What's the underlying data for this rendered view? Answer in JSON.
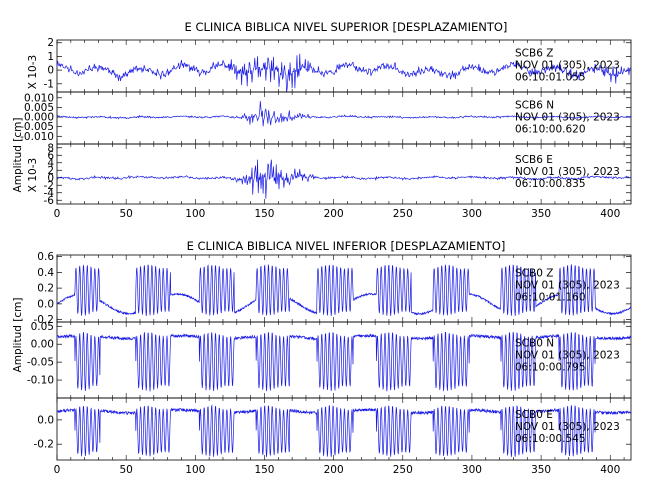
{
  "chart_data": [
    {
      "type": "line",
      "title": "E CLINICA BIBLICA NIVEL SUPERIOR [DESPLAZAMIENTO]",
      "ylabel": "Amplitud [cm]",
      "xlim": [
        0,
        415
      ],
      "xticks": [
        "0",
        "50",
        "100",
        "150",
        "200",
        "250",
        "300",
        "350",
        "400"
      ],
      "panels": [
        {
          "multiplier": "X 10-3",
          "ylim": [
            -1.6,
            2.2
          ],
          "yticks": [
            "2",
            "1",
            "0",
            "-1"
          ],
          "yticks_v": [
            2,
            1,
            0,
            -1
          ],
          "label_lines": [
            "SCB6   Z",
            "NOV 01 (305), 2023",
            "06:10:01.055"
          ],
          "signal": {
            "noise": 0.32,
            "slow": 0.42,
            "burst_amp": 1.35,
            "burst_center": 150,
            "burst_width": 16,
            "late_amp": 0.7,
            "late_center": 172,
            "late_width": 7,
            "tail_amp": 0.5,
            "tail_center": 402,
            "tail_width": 5,
            "seed": 11
          }
        },
        {
          "multiplier": "",
          "ylim": [
            -0.014,
            0.013
          ],
          "yticks": [
            "0.010",
            "0.005",
            "0.000",
            "-0.005",
            "-0.010"
          ],
          "yticks_v": [
            0.01,
            0.005,
            0,
            -0.005,
            -0.01
          ],
          "label_lines": [
            "SCB6   N",
            "NOV 01 (305), 2023",
            "06:10:00.620"
          ],
          "signal": {
            "noise": 0.0005,
            "slow": 0.0004,
            "burst_amp": 0.0105,
            "burst_center": 149,
            "burst_width": 7,
            "late_amp": 0.003,
            "late_center": 168,
            "late_width": 8,
            "tail_amp": 0,
            "tail_center": 0,
            "tail_width": 1,
            "seed": 23
          }
        },
        {
          "multiplier": "X 10-3",
          "ylim": [
            -7,
            9
          ],
          "yticks": [
            "8",
            "6",
            "4",
            "2",
            "0",
            "-2",
            "-4",
            "-6"
          ],
          "yticks_v": [
            8,
            6,
            4,
            2,
            0,
            -2,
            -4,
            -6
          ],
          "label_lines": [
            "SCB6   E",
            "NOV 01 (305), 2023",
            "06:10:00.835"
          ],
          "signal": {
            "noise": 0.35,
            "slow": 0.3,
            "burst_amp": 6.4,
            "burst_center": 149,
            "burst_width": 9,
            "late_amp": 2.2,
            "late_center": 170,
            "late_width": 9,
            "tail_amp": 0,
            "tail_center": 0,
            "tail_width": 1,
            "seed": 37
          }
        }
      ]
    },
    {
      "type": "line",
      "title": "E CLINICA BIBLICA NIVEL INFERIOR [DESPLAZAMIENTO]",
      "ylabel": "Amplitud [cm]",
      "xlim": [
        0,
        415
      ],
      "xticks": [
        "0",
        "50",
        "100",
        "150",
        "200",
        "250",
        "300",
        "350",
        "400"
      ],
      "panels": [
        {
          "multiplier": "",
          "ylim": [
            -0.23,
            0.62
          ],
          "yticks": [
            "0.6",
            "0.4",
            "0.2",
            "0.0",
            "-0.2"
          ],
          "yticks_v": [
            0.6,
            0.4,
            0.2,
            0.0,
            -0.2
          ],
          "label_lines": [
            "SCB0   Z",
            "NOV 01 (305), 2023",
            "06:10:01.160"
          ],
          "pulses": {
            "base": 0.0,
            "top": 0.5,
            "bottom": -0.15,
            "bursts": [
              [
                13,
                31
              ],
              [
                57,
                82
              ],
              [
                103,
                128
              ],
              [
                144,
                168
              ],
              [
                188,
                214
              ],
              [
                231,
                256
              ],
              [
                272,
                298
              ],
              [
                321,
                346
              ],
              [
                363,
                389
              ]
            ],
            "noise": 0.012,
            "seed": 51
          }
        },
        {
          "multiplier": "",
          "ylim": [
            -0.15,
            0.062
          ],
          "yticks": [
            "0.05",
            "0.00",
            "-0.05",
            "-0.10"
          ],
          "yticks_v": [
            0.05,
            0.0,
            -0.05,
            -0.1
          ],
          "label_lines": [
            "SCB0   N",
            "NOV 01 (305), 2023",
            "06:10:00.795"
          ],
          "pulses": {
            "base": 0.02,
            "top": 0.035,
            "bottom": -0.13,
            "bursts": [
              [
                13,
                31
              ],
              [
                57,
                82
              ],
              [
                103,
                128
              ],
              [
                144,
                168
              ],
              [
                188,
                214
              ],
              [
                231,
                256
              ],
              [
                272,
                298
              ],
              [
                321,
                346
              ],
              [
                363,
                389
              ]
            ],
            "noise": 0.004,
            "seed": 63
          }
        },
        {
          "multiplier": "",
          "ylim": [
            -0.33,
            0.18
          ],
          "yticks": [
            "0.0",
            "-0.2"
          ],
          "yticks_v": [
            0.0,
            -0.2
          ],
          "label_lines": [
            "SCB0   E",
            "NOV 01 (305), 2023",
            "06:10:00.545"
          ],
          "pulses": {
            "base": 0.07,
            "top": 0.12,
            "bottom": -0.3,
            "bursts": [
              [
                13,
                31
              ],
              [
                57,
                82
              ],
              [
                103,
                128
              ],
              [
                144,
                168
              ],
              [
                188,
                214
              ],
              [
                231,
                256
              ],
              [
                272,
                298
              ],
              [
                321,
                346
              ],
              [
                363,
                389
              ]
            ],
            "noise": 0.012,
            "seed": 77
          }
        }
      ]
    }
  ]
}
